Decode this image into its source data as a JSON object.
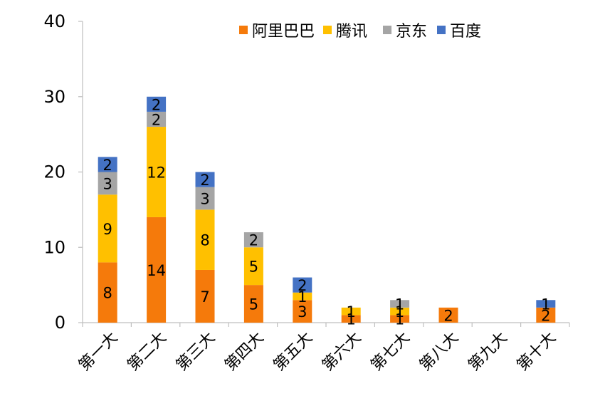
{
  "chart_data": {
    "type": "bar",
    "stacked": true,
    "categories": [
      "第一大",
      "第二大",
      "第三大",
      "第四大",
      "第五大",
      "第六大",
      "第七大",
      "第八大",
      "第九大",
      "第十大"
    ],
    "series": [
      {
        "name": "阿里巴巴",
        "color": "#F57A0B",
        "values": [
          8,
          14,
          7,
          5,
          3,
          1,
          1,
          2,
          0,
          2
        ],
        "labels": [
          "8",
          "14",
          "7",
          "5",
          "3",
          "1",
          "1",
          "2",
          "",
          "2"
        ]
      },
      {
        "name": "腾讯",
        "color": "#FFC000",
        "values": [
          9,
          12,
          8,
          5,
          1,
          1,
          1,
          0,
          0,
          0
        ],
        "labels": [
          "9",
          "12",
          "8",
          "5",
          "1",
          "1",
          "1",
          "",
          "",
          ""
        ]
      },
      {
        "name": "京东",
        "color": "#A5A5A5",
        "values": [
          3,
          2,
          3,
          2,
          0,
          0,
          1,
          0,
          0,
          0
        ],
        "labels": [
          "3",
          "2",
          "3",
          "2",
          "",
          "",
          "1",
          "",
          "",
          ""
        ]
      },
      {
        "name": "百度",
        "color": "#4472C4",
        "values": [
          2,
          2,
          2,
          0,
          2,
          0,
          0,
          0,
          0,
          1
        ],
        "labels": [
          "2",
          "2",
          "2",
          "",
          "2",
          "",
          "",
          "",
          "",
          "1"
        ]
      }
    ],
    "ylim": [
      0,
      40
    ],
    "yticks": [
      0,
      10,
      20,
      30,
      40
    ],
    "title": "",
    "xlabel": "",
    "ylabel": "",
    "grid": false,
    "legend_position": "top-right"
  }
}
